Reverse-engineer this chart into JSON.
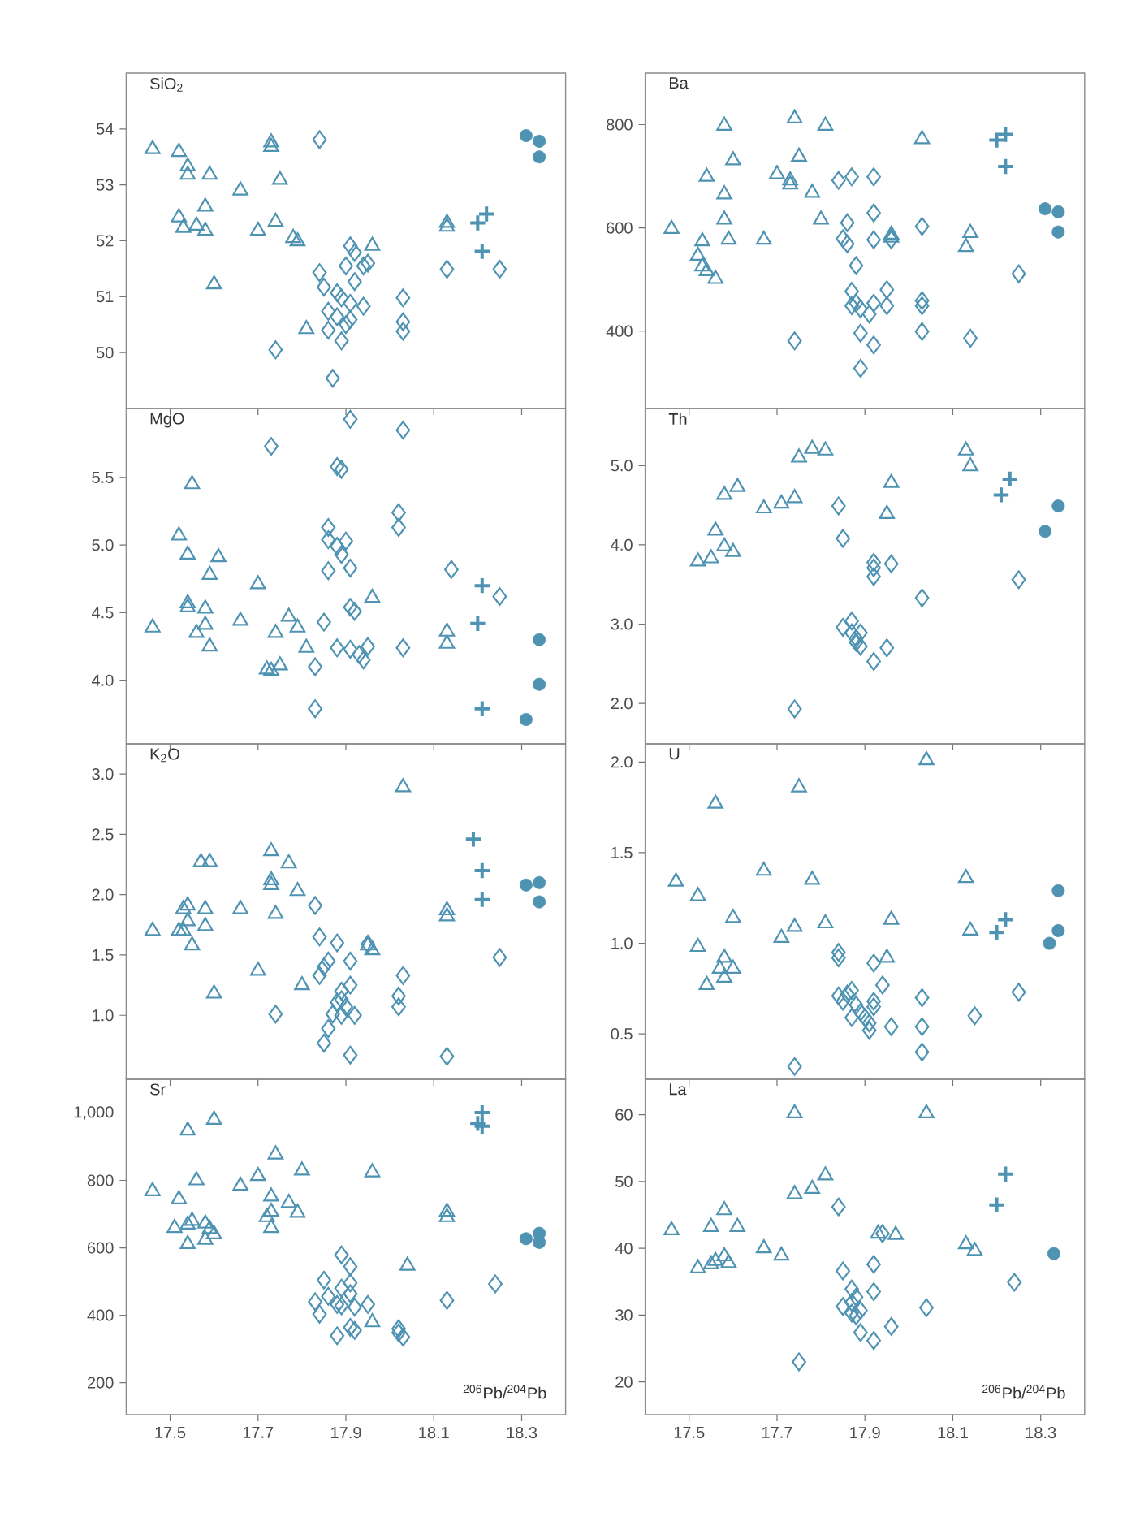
{
  "chart_data": [
    {
      "type": "scatter",
      "title": "SiO$_{2}$",
      "xlim": [
        17.4,
        18.4
      ],
      "xticks": [
        17.5,
        17.7,
        17.9,
        18.1,
        18.3
      ],
      "ylim": [
        49.0,
        55.0
      ],
      "yticks": [
        50,
        51,
        52,
        53,
        54
      ],
      "tick_labels": "y",
      "series": [
        {
          "marker": "triangle",
          "color": "#4f93b3",
          "x": [
            17.46,
            17.52,
            17.54,
            17.54,
            17.59,
            17.66,
            17.73,
            17.73,
            17.75,
            17.52,
            17.58,
            17.56,
            17.58,
            17.53,
            17.7,
            17.74,
            17.78,
            17.79,
            17.6,
            17.81,
            17.96,
            18.13,
            18.13
          ],
          "values": [
            53.64,
            53.59,
            53.33,
            53.18,
            53.18,
            52.9,
            53.76,
            53.68,
            53.09,
            52.42,
            52.61,
            52.27,
            52.18,
            52.23,
            52.18,
            52.34,
            52.05,
            51.99,
            51.22,
            50.42,
            51.91,
            52.32,
            52.25
          ]
        },
        {
          "marker": "diamond",
          "color": "#4f93b3",
          "x": [
            17.84,
            17.74,
            17.87,
            17.84,
            17.85,
            17.88,
            17.89,
            17.86,
            17.9,
            17.86,
            17.89,
            17.91,
            17.91,
            17.92,
            17.9,
            17.94,
            17.95,
            17.92,
            17.94,
            17.91,
            18.03,
            18.03,
            18.03,
            18.13,
            18.25,
            17.88
          ],
          "values": [
            53.81,
            50.05,
            49.54,
            51.43,
            51.17,
            51.07,
            50.98,
            50.74,
            50.5,
            50.4,
            50.21,
            50.88,
            51.91,
            51.79,
            51.55,
            51.55,
            51.6,
            51.27,
            50.83,
            50.59,
            50.98,
            50.55,
            50.38,
            51.49,
            51.49,
            50.64
          ]
        },
        {
          "marker": "cross",
          "color": "#4f93b3",
          "x": [
            18.2,
            18.22,
            18.21
          ],
          "values": [
            52.32,
            52.48,
            51.81
          ]
        },
        {
          "marker": "circle",
          "color": "#4f93b3",
          "x": [
            18.31,
            18.34,
            18.34
          ],
          "values": [
            53.88,
            53.78,
            53.5
          ]
        }
      ]
    },
    {
      "type": "scatter",
      "title": "Ba",
      "xlim": [
        17.4,
        18.4
      ],
      "xticks": [
        17.5,
        17.7,
        17.9,
        18.1,
        18.3
      ],
      "ylim": [
        250,
        900
      ],
      "yticks": [
        400,
        600,
        800
      ],
      "tick_labels": "y",
      "series": [
        {
          "marker": "triangle",
          "color": "#4f93b3",
          "x": [
            17.46,
            17.53,
            17.52,
            17.53,
            17.54,
            17.56,
            17.54,
            17.58,
            17.58,
            17.59,
            17.58,
            17.6,
            17.67,
            17.7,
            17.73,
            17.73,
            17.75,
            17.74,
            17.78,
            17.81,
            17.8,
            17.96,
            17.96,
            18.03,
            18.13,
            18.14
          ],
          "values": [
            598,
            574,
            546,
            525,
            516,
            501,
            699,
            665,
            616,
            577,
            798,
            731,
            577,
            704,
            692,
            684,
            738,
            812,
            668,
            798,
            616,
            581,
            587,
            772,
            563,
            590
          ]
        },
        {
          "marker": "diamond",
          "color": "#4f93b3",
          "x": [
            17.84,
            17.87,
            17.92,
            17.86,
            17.92,
            17.85,
            17.86,
            17.88,
            17.92,
            17.96,
            18.03,
            17.87,
            17.88,
            17.89,
            17.87,
            17.95,
            17.95,
            17.92,
            17.91,
            18.03,
            18.03,
            18.03,
            17.89,
            17.92,
            17.89,
            18.14,
            18.25,
            17.74
          ],
          "values": [
            692,
            699,
            699,
            610,
            629,
            579,
            569,
            527,
            577,
            577,
            603,
            477,
            454,
            443,
            449,
            480,
            449,
            454,
            433,
            459,
            449,
            399,
            396,
            373,
            328,
            386,
            511,
            381
          ]
        },
        {
          "marker": "cross",
          "color": "#4f93b3",
          "x": [
            18.2,
            18.22,
            18.22
          ],
          "values": [
            770,
            781,
            719
          ]
        },
        {
          "marker": "circle",
          "color": "#4f93b3",
          "x": [
            18.31,
            18.34,
            18.34
          ],
          "values": [
            637,
            631,
            592
          ]
        }
      ]
    },
    {
      "type": "scatter",
      "title": "MgO",
      "xlim": [
        17.4,
        18.4
      ],
      "xticks": [
        17.5,
        17.7,
        17.9,
        18.1,
        18.3
      ],
      "ylim": [
        3.53,
        6.01
      ],
      "yticks": [
        {
          "value": 4,
          "label": "4.0"
        },
        4.5,
        {
          "value": 5,
          "label": "5.0"
        },
        5.5
      ],
      "tick_labels": "y",
      "series": [
        {
          "marker": "triangle",
          "color": "#4f93b3",
          "x": [
            17.46,
            17.52,
            17.54,
            17.55,
            17.61,
            17.59,
            17.54,
            17.54,
            17.58,
            17.58,
            17.56,
            17.59,
            17.66,
            17.7,
            17.74,
            17.77,
            17.79,
            17.81,
            17.72,
            17.73,
            17.75,
            17.96,
            18.13,
            18.13
          ],
          "values": [
            4.39,
            5.07,
            4.93,
            5.45,
            4.91,
            4.78,
            4.57,
            4.54,
            4.53,
            4.41,
            4.35,
            4.25,
            4.44,
            4.71,
            4.35,
            4.47,
            4.39,
            4.24,
            4.08,
            4.07,
            4.11,
            4.61,
            4.36,
            4.27
          ]
        },
        {
          "marker": "diamond",
          "color": "#4f93b3",
          "x": [
            17.73,
            17.91,
            18.03,
            17.88,
            17.89,
            18.02,
            18.02,
            17.86,
            17.86,
            17.88,
            17.9,
            17.89,
            17.86,
            17.91,
            18.14,
            18.25,
            17.91,
            17.92,
            17.85,
            17.88,
            17.91,
            17.93,
            17.95,
            17.94,
            18.03,
            17.83,
            17.83
          ],
          "values": [
            5.73,
            5.93,
            5.85,
            5.58,
            5.56,
            5.24,
            5.13,
            5.13,
            5.04,
            4.99,
            5.03,
            4.93,
            4.81,
            4.83,
            4.82,
            4.62,
            4.54,
            4.51,
            4.43,
            4.24,
            4.23,
            4.19,
            4.25,
            4.15,
            4.24,
            4.1,
            3.79
          ]
        },
        {
          "marker": "cross",
          "color": "#4f93b3",
          "x": [
            18.21,
            18.2,
            18.21
          ],
          "values": [
            4.7,
            4.42,
            3.79
          ]
        },
        {
          "marker": "circle",
          "color": "#4f93b3",
          "x": [
            18.34,
            18.34,
            18.31
          ],
          "values": [
            4.3,
            3.97,
            3.71
          ]
        }
      ]
    },
    {
      "type": "scatter",
      "title": "Th",
      "xlim": [
        17.4,
        18.4
      ],
      "xticks": [
        17.5,
        17.7,
        17.9,
        18.1,
        18.3
      ],
      "ylim": [
        1.49,
        5.72
      ],
      "yticks": [
        {
          "value": 2,
          "label": "2.0"
        },
        {
          "value": 3,
          "label": "3.0"
        },
        {
          "value": 4,
          "label": "4.0"
        },
        {
          "value": 5,
          "label": "5.0"
        }
      ],
      "tick_labels": "y",
      "series": [
        {
          "marker": "triangle",
          "color": "#4f93b3",
          "x": [
            17.52,
            17.55,
            17.56,
            17.58,
            17.6,
            17.58,
            17.61,
            17.67,
            17.71,
            17.74,
            17.75,
            17.78,
            17.81,
            17.95,
            17.96,
            18.13,
            18.14
          ],
          "values": [
            3.79,
            3.83,
            4.18,
            3.98,
            3.91,
            4.63,
            4.73,
            4.46,
            4.52,
            4.59,
            5.1,
            5.21,
            5.19,
            4.39,
            4.78,
            5.19,
            4.99
          ]
        },
        {
          "marker": "diamond",
          "color": "#4f93b3",
          "x": [
            17.84,
            17.85,
            17.92,
            17.92,
            17.92,
            17.96,
            18.03,
            18.25,
            17.87,
            17.85,
            17.87,
            17.88,
            17.89,
            17.88,
            17.89,
            17.92,
            17.95,
            17.74
          ],
          "values": [
            4.49,
            4.08,
            3.78,
            3.71,
            3.6,
            3.76,
            3.33,
            3.56,
            3.04,
            2.96,
            2.89,
            2.82,
            2.89,
            2.77,
            2.72,
            2.53,
            2.7,
            1.93
          ]
        },
        {
          "marker": "cross",
          "color": "#4f93b3",
          "x": [
            18.21,
            18.23
          ],
          "values": [
            4.63,
            4.83
          ]
        },
        {
          "marker": "circle",
          "color": "#4f93b3",
          "x": [
            18.31,
            18.34
          ],
          "values": [
            4.17,
            4.49
          ]
        }
      ]
    },
    {
      "type": "scatter",
      "title": "K$_{2}$O",
      "xlim": [
        17.4,
        18.4
      ],
      "xticks": [
        17.5,
        17.7,
        17.9,
        18.1,
        18.3
      ],
      "ylim": [
        0.47,
        3.25
      ],
      "yticks": [
        {
          "value": 1,
          "label": "1.0"
        },
        1.5,
        {
          "value": 2,
          "label": "2.0"
        },
        2.5,
        {
          "value": 3,
          "label": "3.0"
        }
      ],
      "tick_labels": "y",
      "series": [
        {
          "marker": "triangle",
          "color": "#4f93b3",
          "x": [
            17.46,
            17.52,
            17.53,
            17.54,
            17.54,
            17.53,
            17.55,
            17.58,
            17.58,
            17.57,
            17.59,
            17.6,
            17.66,
            17.7,
            17.73,
            17.73,
            17.73,
            17.74,
            17.77,
            17.79,
            17.8,
            18.03,
            17.96,
            17.95,
            18.13,
            18.13
          ],
          "values": [
            1.7,
            1.7,
            1.88,
            1.91,
            1.78,
            1.7,
            1.58,
            1.88,
            1.74,
            2.27,
            2.27,
            1.18,
            1.88,
            1.37,
            2.36,
            2.12,
            2.08,
            1.84,
            2.26,
            2.03,
            1.25,
            2.89,
            1.54,
            1.58,
            1.87,
            1.82
          ]
        },
        {
          "marker": "diamond",
          "color": "#4f93b3",
          "x": [
            17.83,
            17.84,
            17.88,
            17.85,
            17.86,
            17.84,
            17.91,
            17.91,
            17.89,
            17.89,
            17.88,
            17.9,
            17.89,
            17.87,
            17.92,
            17.86,
            17.85,
            17.91,
            17.95,
            18.03,
            18.02,
            18.02,
            17.74,
            18.13,
            18.25
          ],
          "values": [
            1.91,
            1.65,
            1.6,
            1.4,
            1.45,
            1.33,
            1.45,
            1.25,
            1.2,
            1.13,
            1.11,
            1.07,
            1.0,
            1.01,
            1.0,
            0.89,
            0.77,
            0.67,
            1.59,
            1.33,
            1.16,
            1.07,
            1.01,
            0.66,
            1.48
          ]
        },
        {
          "marker": "cross",
          "color": "#4f93b3",
          "x": [
            18.19,
            18.21,
            18.21
          ],
          "values": [
            2.46,
            2.2,
            1.96
          ]
        },
        {
          "marker": "circle",
          "color": "#4f93b3",
          "x": [
            18.31,
            18.34,
            18.34
          ],
          "values": [
            2.08,
            2.1,
            1.94
          ]
        }
      ]
    },
    {
      "type": "scatter",
      "title": "U",
      "xlim": [
        17.4,
        18.4
      ],
      "xticks": [
        17.5,
        17.7,
        17.9,
        18.1,
        18.3
      ],
      "ylim": [
        0.25,
        2.1
      ],
      "yticks": [
        0.5,
        {
          "value": 1,
          "label": "1.0"
        },
        1.5,
        {
          "value": 2,
          "label": "2.0"
        }
      ],
      "tick_labels": "y",
      "series": [
        {
          "marker": "triangle",
          "color": "#4f93b3",
          "x": [
            17.47,
            17.52,
            17.52,
            17.54,
            17.56,
            17.58,
            17.58,
            17.6,
            17.57,
            17.6,
            17.67,
            17.71,
            17.74,
            17.75,
            17.78,
            17.81,
            17.95,
            17.96,
            18.04,
            18.13,
            18.14
          ],
          "values": [
            1.34,
            1.26,
            0.98,
            0.77,
            1.77,
            0.92,
            0.81,
            0.86,
            0.86,
            1.14,
            1.4,
            1.03,
            1.09,
            1.86,
            1.35,
            1.11,
            0.92,
            1.13,
            2.01,
            1.36,
            1.07
          ]
        },
        {
          "marker": "diamond",
          "color": "#4f93b3",
          "x": [
            17.84,
            17.84,
            17.92,
            17.94,
            17.84,
            17.86,
            17.87,
            17.85,
            17.88,
            17.89,
            17.92,
            17.92,
            17.9,
            17.87,
            17.91,
            17.91,
            17.96,
            18.03,
            18.03,
            18.03,
            18.15,
            18.25,
            17.74
          ],
          "values": [
            0.95,
            0.92,
            0.89,
            0.77,
            0.71,
            0.72,
            0.74,
            0.68,
            0.66,
            0.62,
            0.68,
            0.65,
            0.59,
            0.59,
            0.56,
            0.52,
            0.54,
            0.7,
            0.54,
            0.4,
            0.6,
            0.73,
            0.32
          ]
        },
        {
          "marker": "cross",
          "color": "#4f93b3",
          "x": [
            18.2,
            18.22
          ],
          "values": [
            1.06,
            1.13
          ]
        },
        {
          "marker": "circle",
          "color": "#4f93b3",
          "x": [
            18.34,
            18.32,
            18.34
          ],
          "values": [
            1.29,
            1.0,
            1.07
          ]
        }
      ]
    },
    {
      "type": "scatter",
      "title": "Sr",
      "xlabel": "$^{206}$Pb/$^{204}$Pb",
      "xlim": [
        17.4,
        18.4
      ],
      "xticks": [
        17.5,
        17.7,
        17.9,
        18.1,
        18.3
      ],
      "ylim": [
        105,
        1100
      ],
      "yticks": [
        200,
        400,
        600,
        800,
        {
          "value": 1000,
          "label": "1,000"
        }
      ],
      "series": [
        {
          "marker": "triangle",
          "color": "#4f93b3",
          "x": [
            17.46,
            17.52,
            17.54,
            17.6,
            17.56,
            17.66,
            17.7,
            17.74,
            17.8,
            17.96,
            17.51,
            17.54,
            17.55,
            17.58,
            17.59,
            17.54,
            17.58,
            17.6,
            17.73,
            17.72,
            17.73,
            17.73,
            17.77,
            17.79,
            18.04,
            17.96,
            18.13,
            18.13
          ],
          "values": [
            768,
            744,
            948,
            980,
            800,
            784,
            813,
            877,
            829,
            824,
            659,
            669,
            680,
            672,
            656,
            611,
            624,
            640,
            707,
            691,
            752,
            659,
            733,
            704,
            547,
            379,
            707,
            691
          ]
        },
        {
          "marker": "diamond",
          "color": "#4f93b3",
          "x": [
            17.89,
            17.91,
            17.85,
            17.89,
            17.91,
            17.83,
            17.86,
            17.84,
            17.88,
            17.89,
            17.91,
            17.92,
            17.95,
            17.88,
            17.91,
            17.92,
            18.02,
            18.03,
            18.02,
            18.13,
            18.24
          ],
          "values": [
            579,
            544,
            504,
            480,
            496,
            440,
            456,
            403,
            432,
            428,
            464,
            424,
            432,
            339,
            364,
            355,
            360,
            335,
            348,
            444,
            493
          ]
        },
        {
          "marker": "cross",
          "color": "#4f93b3",
          "x": [
            18.21,
            18.21,
            18.2
          ],
          "values": [
            1001,
            961,
            969
          ]
        },
        {
          "marker": "circle",
          "color": "#4f93b3",
          "x": [
            18.31,
            18.34,
            18.34
          ],
          "values": [
            627,
            643,
            616
          ]
        }
      ]
    },
    {
      "type": "scatter",
      "title": "La",
      "xlabel": "$^{206}$Pb/$^{204}$Pb",
      "xlim": [
        17.4,
        18.4
      ],
      "xticks": [
        17.5,
        17.7,
        17.9,
        18.1,
        18.3
      ],
      "ylim": [
        15.1,
        65.3
      ],
      "yticks": [
        20,
        30,
        40,
        50,
        60
      ],
      "series": [
        {
          "marker": "triangle",
          "color": "#4f93b3",
          "x": [
            17.46,
            17.52,
            17.55,
            17.56,
            17.58,
            17.59,
            17.55,
            17.58,
            17.61,
            17.67,
            17.71,
            17.74,
            17.74,
            17.78,
            17.81,
            17.93,
            17.97,
            18.04,
            18.13,
            18.15
          ],
          "values": [
            42.7,
            37.0,
            37.6,
            38.1,
            38.8,
            37.8,
            43.2,
            45.7,
            43.2,
            40.0,
            38.9,
            60.2,
            48.1,
            48.9,
            50.9,
            42.2,
            42.0,
            60.2,
            40.6,
            39.6
          ]
        },
        {
          "marker": "diamond",
          "color": "#4f93b3",
          "x": [
            17.84,
            17.85,
            17.87,
            17.88,
            17.85,
            17.87,
            17.89,
            17.88,
            17.89,
            17.92,
            17.92,
            17.94,
            17.92,
            17.96,
            18.04,
            18.24,
            17.75,
            17.87
          ],
          "values": [
            46.2,
            36.6,
            33.9,
            32.7,
            31.3,
            30.3,
            30.7,
            29.9,
            27.4,
            33.5,
            37.6,
            42.2,
            26.2,
            28.3,
            31.1,
            34.9,
            23.0,
            31.9
          ]
        },
        {
          "marker": "cross",
          "color": "#4f93b3",
          "x": [
            18.22,
            18.2
          ],
          "values": [
            51.1,
            46.5
          ]
        },
        {
          "marker": "circle",
          "color": "#4f93b3",
          "x": [
            18.33
          ],
          "values": [
            39.2
          ]
        }
      ]
    }
  ]
}
